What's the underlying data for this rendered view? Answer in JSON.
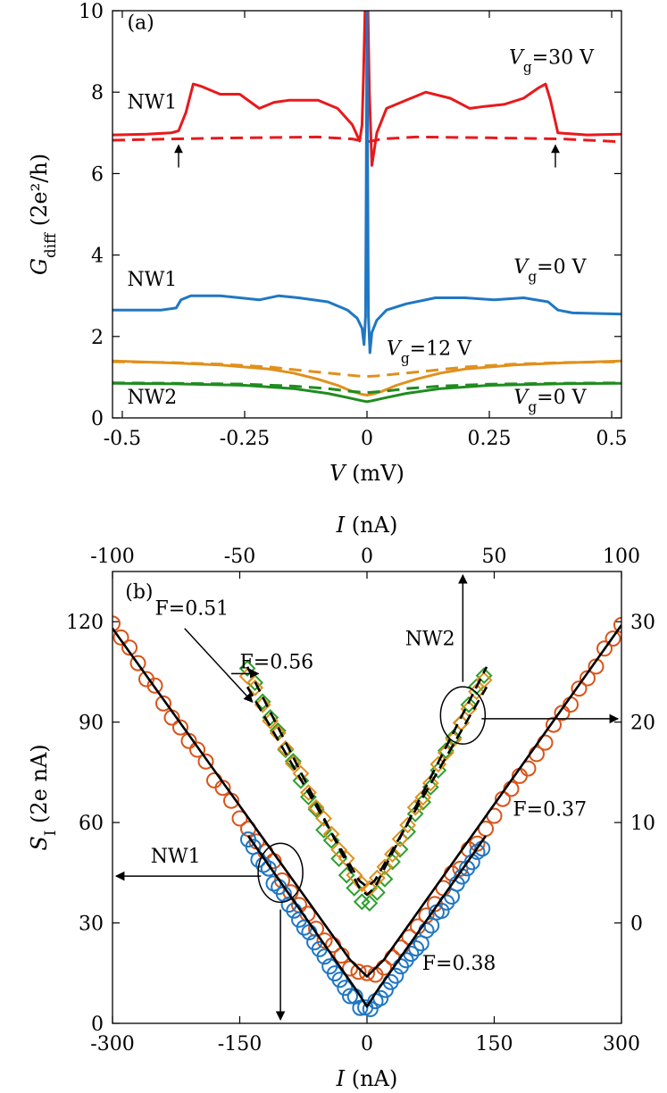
{
  "chart_data": [
    {
      "panel": "(a)",
      "type": "line",
      "xlabel": "V (mV)",
      "ylabel": "G_diff (2e²/h)",
      "xlim": [
        -0.52,
        0.52
      ],
      "ylim": [
        0,
        10
      ],
      "xticks": [
        -0.5,
        -0.25,
        0,
        0.25,
        0.5
      ],
      "xtick_labels": [
        "-0.5",
        "-0.25",
        "0",
        "0.25",
        "0.5"
      ],
      "yticks": [
        0,
        2,
        4,
        6,
        8,
        10
      ],
      "ytick_labels": [
        "0",
        "2",
        "4",
        "6",
        "8",
        "10"
      ],
      "grid": false,
      "colors": {
        "red": "#e8191c",
        "blue": "#1f77c4",
        "orange": "#e0901c",
        "green": "#1f8c1f"
      },
      "series": [
        {
          "label": "NW1",
          "gate": "Vg=30 V",
          "color": "#e8191c",
          "style": "solid",
          "x": [
            -0.52,
            -0.45,
            -0.4,
            -0.385,
            -0.37,
            -0.355,
            -0.34,
            -0.3,
            -0.26,
            -0.22,
            -0.19,
            -0.16,
            -0.1,
            -0.06,
            -0.03,
            -0.015,
            -0.01,
            -0.007,
            -0.004,
            -0.002,
            0.002,
            0.005,
            0.01,
            0.02,
            0.04,
            0.08,
            0.12,
            0.17,
            0.21,
            0.24,
            0.28,
            0.32,
            0.35,
            0.365,
            0.375,
            0.39,
            0.45,
            0.52
          ],
          "y": [
            6.95,
            6.97,
            7.0,
            7.05,
            7.5,
            8.2,
            8.15,
            7.95,
            7.95,
            7.6,
            7.75,
            7.8,
            7.8,
            7.6,
            7.2,
            6.8,
            7.2,
            8.5,
            10,
            10,
            10,
            8.0,
            6.2,
            7.0,
            7.6,
            7.8,
            8.0,
            7.85,
            7.6,
            7.65,
            7.7,
            7.85,
            8.1,
            8.2,
            7.8,
            7.0,
            6.95,
            6.97
          ]
        },
        {
          "label": "NW1",
          "gate": "Vg=30 V",
          "color": "#e8191c",
          "style": "dashed",
          "x": [
            -0.52,
            -0.4,
            -0.25,
            -0.1,
            -0.03,
            -0.01,
            0,
            0.01,
            0.03,
            0.1,
            0.25,
            0.4,
            0.52
          ],
          "y": [
            6.82,
            6.85,
            6.88,
            6.9,
            6.85,
            6.8,
            6.78,
            6.8,
            6.85,
            6.9,
            6.88,
            6.85,
            6.78
          ]
        },
        {
          "label": "NW1",
          "gate": "Vg=0 V",
          "color": "#1f77c4",
          "style": "solid",
          "x": [
            -0.52,
            -0.42,
            -0.39,
            -0.38,
            -0.36,
            -0.3,
            -0.22,
            -0.18,
            -0.14,
            -0.08,
            -0.04,
            -0.02,
            -0.01,
            -0.006,
            -0.003,
            -0.0015,
            0,
            0.0015,
            0.003,
            0.006,
            0.01,
            0.02,
            0.04,
            0.08,
            0.14,
            0.2,
            0.26,
            0.32,
            0.37,
            0.39,
            0.42,
            0.52
          ],
          "y": [
            2.65,
            2.65,
            2.7,
            2.9,
            3.0,
            3.0,
            2.9,
            3.0,
            2.95,
            2.85,
            2.65,
            2.45,
            2.2,
            1.8,
            2.5,
            6.0,
            10,
            6.0,
            2.5,
            1.6,
            2.1,
            2.4,
            2.65,
            2.8,
            2.95,
            2.95,
            2.9,
            2.95,
            2.85,
            2.65,
            2.58,
            2.55
          ]
        },
        {
          "label": "NW2",
          "gate": "Vg=12 V",
          "color": "#e0901c",
          "style": "solid",
          "x": [
            -0.52,
            -0.4,
            -0.3,
            -0.2,
            -0.15,
            -0.1,
            -0.06,
            -0.03,
            -0.01,
            0,
            0.01,
            0.03,
            0.06,
            0.1,
            0.15,
            0.2,
            0.3,
            0.4,
            0.52
          ],
          "y": [
            1.4,
            1.35,
            1.3,
            1.2,
            1.1,
            0.95,
            0.8,
            0.65,
            0.58,
            0.56,
            0.58,
            0.65,
            0.8,
            0.95,
            1.1,
            1.2,
            1.3,
            1.35,
            1.4
          ]
        },
        {
          "label": "NW2",
          "gate": "Vg=12 V",
          "color": "#e0901c",
          "style": "dashed",
          "x": [
            -0.52,
            -0.4,
            -0.3,
            -0.2,
            -0.12,
            -0.06,
            -0.02,
            0,
            0.02,
            0.06,
            0.12,
            0.2,
            0.3,
            0.4,
            0.52
          ],
          "y": [
            1.38,
            1.36,
            1.32,
            1.25,
            1.15,
            1.08,
            1.03,
            1.02,
            1.03,
            1.08,
            1.15,
            1.25,
            1.32,
            1.36,
            1.38
          ]
        },
        {
          "label": "NW2",
          "gate": "Vg=0 V",
          "color": "#1f8c1f",
          "style": "solid",
          "x": [
            -0.52,
            -0.4,
            -0.25,
            -0.15,
            -0.08,
            -0.04,
            -0.01,
            0,
            0.01,
            0.04,
            0.08,
            0.15,
            0.25,
            0.4,
            0.52
          ],
          "y": [
            0.85,
            0.84,
            0.8,
            0.72,
            0.6,
            0.5,
            0.42,
            0.4,
            0.42,
            0.5,
            0.6,
            0.72,
            0.8,
            0.84,
            0.85
          ]
        },
        {
          "label": "NW2",
          "gate": "Vg=0 V",
          "color": "#1f8c1f",
          "style": "dashed",
          "x": [
            -0.52,
            -0.4,
            -0.25,
            -0.15,
            -0.08,
            -0.04,
            0,
            0.04,
            0.08,
            0.15,
            0.25,
            0.4,
            0.52
          ],
          "y": [
            0.86,
            0.85,
            0.83,
            0.78,
            0.72,
            0.66,
            0.62,
            0.66,
            0.72,
            0.78,
            0.83,
            0.85,
            0.86
          ]
        }
      ],
      "annotations": [
        {
          "text": "(a)",
          "x": -0.49,
          "y": 9.55
        },
        {
          "text": "NW1",
          "x": -0.49,
          "y": 7.6
        },
        {
          "text": "NW1",
          "x": -0.49,
          "y": 3.25
        },
        {
          "text": "NW2",
          "x": -0.49,
          "y": 0.35
        },
        {
          "text": "Vg=30 V",
          "x": 0.29,
          "y": 8.7
        },
        {
          "text": "Vg=0 V",
          "x": 0.3,
          "y": 3.55
        },
        {
          "text": "Vg=12 V",
          "x": 0.04,
          "y": 1.55
        },
        {
          "text": "Vg=0 V",
          "x": 0.3,
          "y": 0.35
        }
      ],
      "arrows": [
        {
          "x": -0.385,
          "y_from": 6.15,
          "y_to": 6.7,
          "direction": "up"
        },
        {
          "x": 0.385,
          "y_from": 6.15,
          "y_to": 6.7,
          "direction": "up"
        }
      ]
    },
    {
      "panel": "(b)",
      "type": "scatter",
      "xlabel": "I (nA)",
      "ylabel": "S_I (2e nA)",
      "x2label": "I (nA)",
      "xlim": [
        -300,
        300
      ],
      "ylim": [
        0,
        135
      ],
      "x2lim": [
        -100,
        100
      ],
      "y2lim": [
        -10,
        35
      ],
      "xticks": [
        -300,
        -150,
        0,
        150,
        300
      ],
      "xtick_labels": [
        "-300",
        "-150",
        "0",
        "150",
        "300"
      ],
      "yticks": [
        0,
        30,
        60,
        90,
        120
      ],
      "ytick_labels": [
        "0",
        "30",
        "60",
        "90",
        "120"
      ],
      "x2ticks": [
        -100,
        -50,
        0,
        50,
        100
      ],
      "x2tick_labels": [
        "-100",
        "-50",
        "0",
        "50",
        "100"
      ],
      "y2ticks": [
        0,
        10,
        20,
        30
      ],
      "y2tick_labels": [
        "0",
        "10",
        "20",
        "30"
      ],
      "grid": false,
      "colors": {
        "orange_circle": "#d9541a",
        "blue_circle": "#1f77c4",
        "green_diamond": "#2ca02c",
        "orange_diamond": "#e0901c",
        "fit": "#000000"
      },
      "series": [
        {
          "label": "NW1",
          "marker": "circle",
          "color": "#d9541a",
          "axes": "bottom-left",
          "x_range": [
            -300,
            300
          ],
          "x_step": 10,
          "model": {
            "S0": 14,
            "k": 0.38,
            "width": 25
          }
        },
        {
          "label": "NW1",
          "marker": "circle",
          "color": "#1f77c4",
          "axes": "bottom-left",
          "x_range": [
            -140,
            140
          ],
          "x_step": 6,
          "model": {
            "S0": 5,
            "k": 0.395,
            "width": 15
          }
        },
        {
          "label": "NW2",
          "marker": "diamond",
          "color": "#2ca02c",
          "axes": "top-right",
          "x_range": [
            -47,
            47
          ],
          "x_step": 3,
          "model": {
            "S0": 2,
            "k": 0.53,
            "width": 3
          }
        },
        {
          "label": "NW2",
          "marker": "diamond",
          "color": "#e0901c",
          "axes": "top-right",
          "x_range": [
            -47,
            47
          ],
          "x_step": 3,
          "model": {
            "S0": 3.5,
            "k": 0.48,
            "width": 3
          }
        },
        {
          "label": "fit",
          "style": "solid",
          "color": "#000000",
          "axes": "bottom-left",
          "x": [
            -300,
            -20,
            0,
            20,
            300
          ],
          "y": [
            118,
            19,
            14,
            19,
            119
          ]
        },
        {
          "label": "fit",
          "style": "solid",
          "color": "#000000",
          "axes": "bottom-left",
          "x": [
            -140,
            -10,
            0,
            10,
            140
          ],
          "y": [
            56,
            9,
            5,
            9,
            56
          ]
        },
        {
          "label": "fit",
          "style": "dashed",
          "color": "#000000",
          "axes": "top-right",
          "x": [
            -47,
            -3,
            0,
            3,
            47
          ],
          "y": [
            25.5,
            3.5,
            2.8,
            3.5,
            25.5
          ]
        },
        {
          "label": "fit",
          "style": "dashed",
          "color": "#000000",
          "axes": "top-right",
          "x": [
            -47,
            -3,
            0,
            3,
            47
          ],
          "y": [
            23.5,
            4.2,
            3.6,
            4.2,
            23.5
          ]
        }
      ],
      "annotations": [
        {
          "text": "(b)",
          "x": -285,
          "y": 127
        },
        {
          "text": "F=0.51",
          "x": -250,
          "y": 122
        },
        {
          "text": "F=0.56",
          "x": -150,
          "y": 106
        },
        {
          "text": "NW2",
          "x": 45,
          "y": 113
        },
        {
          "text": "F=0.37",
          "x": 172,
          "y": 62
        },
        {
          "text": "NW1",
          "x": -255,
          "y": 48
        },
        {
          "text": "F=0.38",
          "x": 65,
          "y": 16
        }
      ]
    }
  ]
}
